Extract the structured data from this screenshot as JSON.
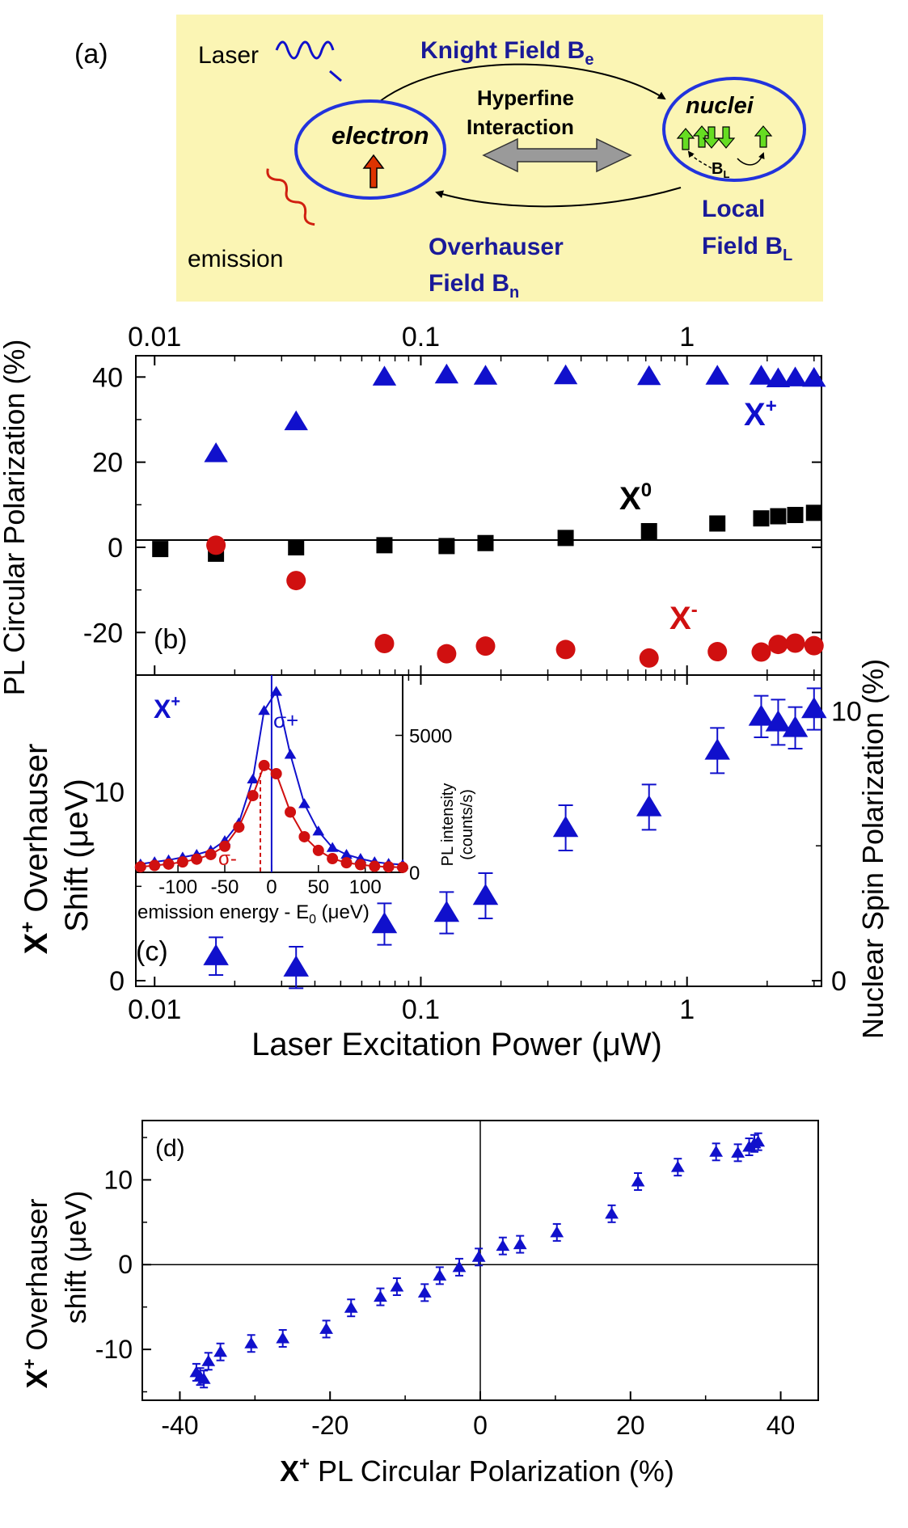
{
  "panel_a": {
    "label": "(a)",
    "laser": "Laser",
    "emission": "emission",
    "knight_field": "Knight Field B",
    "knight_sub": "e",
    "hyperfine_line1": "Hyperfine",
    "hyperfine_line2": "Interaction",
    "electron": "electron",
    "nuclei": "nuclei",
    "bl_small": "B",
    "bl_small_sub": "L",
    "local_field_line1": "Local",
    "local_field_line2": "Field B",
    "local_field_sub": "L",
    "overhauser_line1": "Overhauser",
    "overhauser_line2": "Field B",
    "overhauser_sub": "n"
  },
  "colors": {
    "blue": "#1010cc",
    "red": "#d01010",
    "black": "#000000",
    "panel_bg": "#fbf5b4",
    "arrow_green": "#66dd22",
    "arrow_red": "#dd3300"
  },
  "chart_data": [
    {
      "id": "b",
      "type": "scatter",
      "label": "(b)",
      "ylabel": "PL Circular Polarization (%)",
      "xscale": "log",
      "xlim": [
        0.0085,
        3.2
      ],
      "ylim": [
        -30,
        45
      ],
      "x_ticks": [
        "0.01",
        "0.1",
        "1"
      ],
      "y_ticks": [
        "-20",
        "0",
        "20",
        "40"
      ],
      "series": [
        {
          "name": "X+",
          "label_main": "X",
          "label_sup": "+",
          "marker": "triangle",
          "color": "#1010cc",
          "x": [
            0.017,
            0.034,
            0.073,
            0.125,
            0.175,
            0.35,
            0.72,
            1.3,
            1.9,
            2.2,
            2.55,
            3.0
          ],
          "y": [
            22,
            29.5,
            40,
            40.5,
            40.2,
            40.3,
            40.1,
            40.2,
            40.2,
            39.6,
            39.8,
            39.7
          ]
        },
        {
          "name": "X0",
          "label_main": "X",
          "label_sup": "0",
          "marker": "square",
          "color": "#000000",
          "x": [
            0.0105,
            0.017,
            0.034,
            0.073,
            0.125,
            0.175,
            0.35,
            0.72,
            1.3,
            1.9,
            2.2,
            2.55,
            3.0
          ],
          "y": [
            -0.4,
            -1.5,
            0,
            0.5,
            0.3,
            1.0,
            2.2,
            3.8,
            5.6,
            6.8,
            7.3,
            7.6,
            8.1
          ]
        },
        {
          "name": "X-",
          "label_main": "X",
          "label_sup": "-",
          "marker": "circle",
          "color": "#d01010",
          "x": [
            0.017,
            0.034,
            0.073,
            0.125,
            0.175,
            0.35,
            0.72,
            1.3,
            1.9,
            2.2,
            2.55,
            3.0
          ],
          "y": [
            0.5,
            -7.8,
            -22.6,
            -25,
            -23.2,
            -24,
            -26,
            -24.5,
            -24.6,
            -22.8,
            -22.5,
            -23.1
          ]
        }
      ]
    },
    {
      "id": "c",
      "type": "scatter",
      "label": "(c)",
      "ylabel_left_main": "X",
      "ylabel_left_sup": "+",
      "ylabel_left_line1": " Overhauser",
      "ylabel_left_line2": "Shift (μeV)",
      "ylabel_right": "Nuclear Spin Polarization (%)",
      "xlabel": "Laser Excitation Power (μW)",
      "xscale": "log",
      "xlim": [
        0.0085,
        3.2
      ],
      "ylim": [
        -0.3,
        16.2
      ],
      "y_ticks": [
        "0",
        "10"
      ],
      "x_ticks": [
        "0.01",
        "0.1",
        "1"
      ],
      "right_ticks": [
        "0",
        "10"
      ],
      "series": [
        {
          "name": "X+ Overhauser shift",
          "marker": "triangle",
          "color": "#1010cc",
          "x": [
            0.017,
            0.034,
            0.073,
            0.125,
            0.175,
            0.35,
            0.72,
            1.3,
            1.9,
            2.2,
            2.55,
            3.0
          ],
          "y": [
            1.3,
            0.7,
            3.0,
            3.6,
            4.5,
            8.1,
            9.2,
            12.2,
            14.0,
            13.7,
            13.4,
            14.4
          ],
          "err": [
            1.0,
            1.1,
            1.1,
            1.1,
            1.2,
            1.2,
            1.2,
            1.2,
            1.1,
            1.2,
            1.1,
            1.1
          ]
        }
      ]
    },
    {
      "id": "c-inset",
      "type": "line",
      "label_main": "X",
      "label_sup": "+",
      "xlabel": "emission energy - E",
      "xlabel_sub": "0",
      "xlabel_unit": " (μeV)",
      "ylabel_line1": "PL intensity",
      "ylabel_line2": "(counts/s)",
      "xlim": [
        -145,
        140
      ],
      "ylim": [
        0,
        7200
      ],
      "x_ticks": [
        "-100",
        "-50",
        "0",
        "50",
        "100"
      ],
      "y_ticks": [
        "0",
        "5000"
      ],
      "sigma_plus": "σ+",
      "sigma_minus": "σ-",
      "series": [
        {
          "name": "σ+",
          "marker": "triangle",
          "color": "#1010cc",
          "x": [
            -140,
            -125,
            -110,
            -95,
            -80,
            -65,
            -50,
            -35,
            -20,
            -8,
            5,
            20,
            35,
            50,
            65,
            80,
            95,
            110,
            125,
            140
          ],
          "y": [
            300,
            380,
            450,
            550,
            650,
            800,
            1150,
            1800,
            3400,
            5900,
            6600,
            4300,
            2500,
            1500,
            900,
            650,
            500,
            380,
            320,
            280
          ]
        },
        {
          "name": "σ-",
          "marker": "circle",
          "color": "#d01010",
          "x": [
            -140,
            -125,
            -110,
            -95,
            -80,
            -65,
            -50,
            -35,
            -20,
            -8,
            5,
            20,
            35,
            50,
            65,
            80,
            95,
            110,
            125,
            140
          ],
          "y": [
            200,
            250,
            300,
            380,
            480,
            650,
            950,
            1650,
            2800,
            3900,
            3600,
            2200,
            1300,
            800,
            500,
            350,
            280,
            220,
            200,
            180
          ]
        }
      ]
    },
    {
      "id": "d",
      "type": "scatter",
      "label": "(d)",
      "ylabel_main": "X",
      "ylabel_sup": "+",
      "ylabel_line1": " Overhauser",
      "ylabel_line2": "shift (μeV)",
      "xlabel_main": "X",
      "xlabel_sup": "+",
      "xlabel_rest": " PL Circular Polarization (%)",
      "xlim": [
        -45,
        45
      ],
      "ylim": [
        -16,
        17
      ],
      "x_ticks": [
        "-40",
        "-20",
        "0",
        "20",
        "40"
      ],
      "y_ticks": [
        "-10",
        "0",
        "10"
      ],
      "series": [
        {
          "name": "X+",
          "marker": "triangle",
          "color": "#1010cc",
          "x": [
            -37.8,
            -37.3,
            -36.8,
            -36.2,
            -34.6,
            -30.5,
            -26.3,
            -20.5,
            -17.2,
            -13.3,
            -11.1,
            -7.4,
            -5.4,
            -2.8,
            -0.2,
            3.0,
            5.3,
            10.2,
            17.5,
            21.0,
            26.3,
            31.4,
            34.3,
            35.8,
            36.5,
            37.0
          ],
          "y": [
            -12.7,
            -13.2,
            -13.5,
            -11.4,
            -10.3,
            -9.3,
            -8.7,
            -7.6,
            -5.1,
            -3.8,
            -2.6,
            -3.3,
            -1.3,
            -0.3,
            0.9,
            2.2,
            2.4,
            3.8,
            6.0,
            9.8,
            11.5,
            13.3,
            13.2,
            13.9,
            14.3,
            14.5
          ],
          "err": [
            1.0,
            1.0,
            1.0,
            1.0,
            1.0,
            1.0,
            1.0,
            1.0,
            1.0,
            1.0,
            1.0,
            1.0,
            1.0,
            1.0,
            1.0,
            1.0,
            1.0,
            1.0,
            1.0,
            1.0,
            1.0,
            1.0,
            1.0,
            1.0,
            1.0,
            1.0
          ]
        }
      ]
    }
  ]
}
